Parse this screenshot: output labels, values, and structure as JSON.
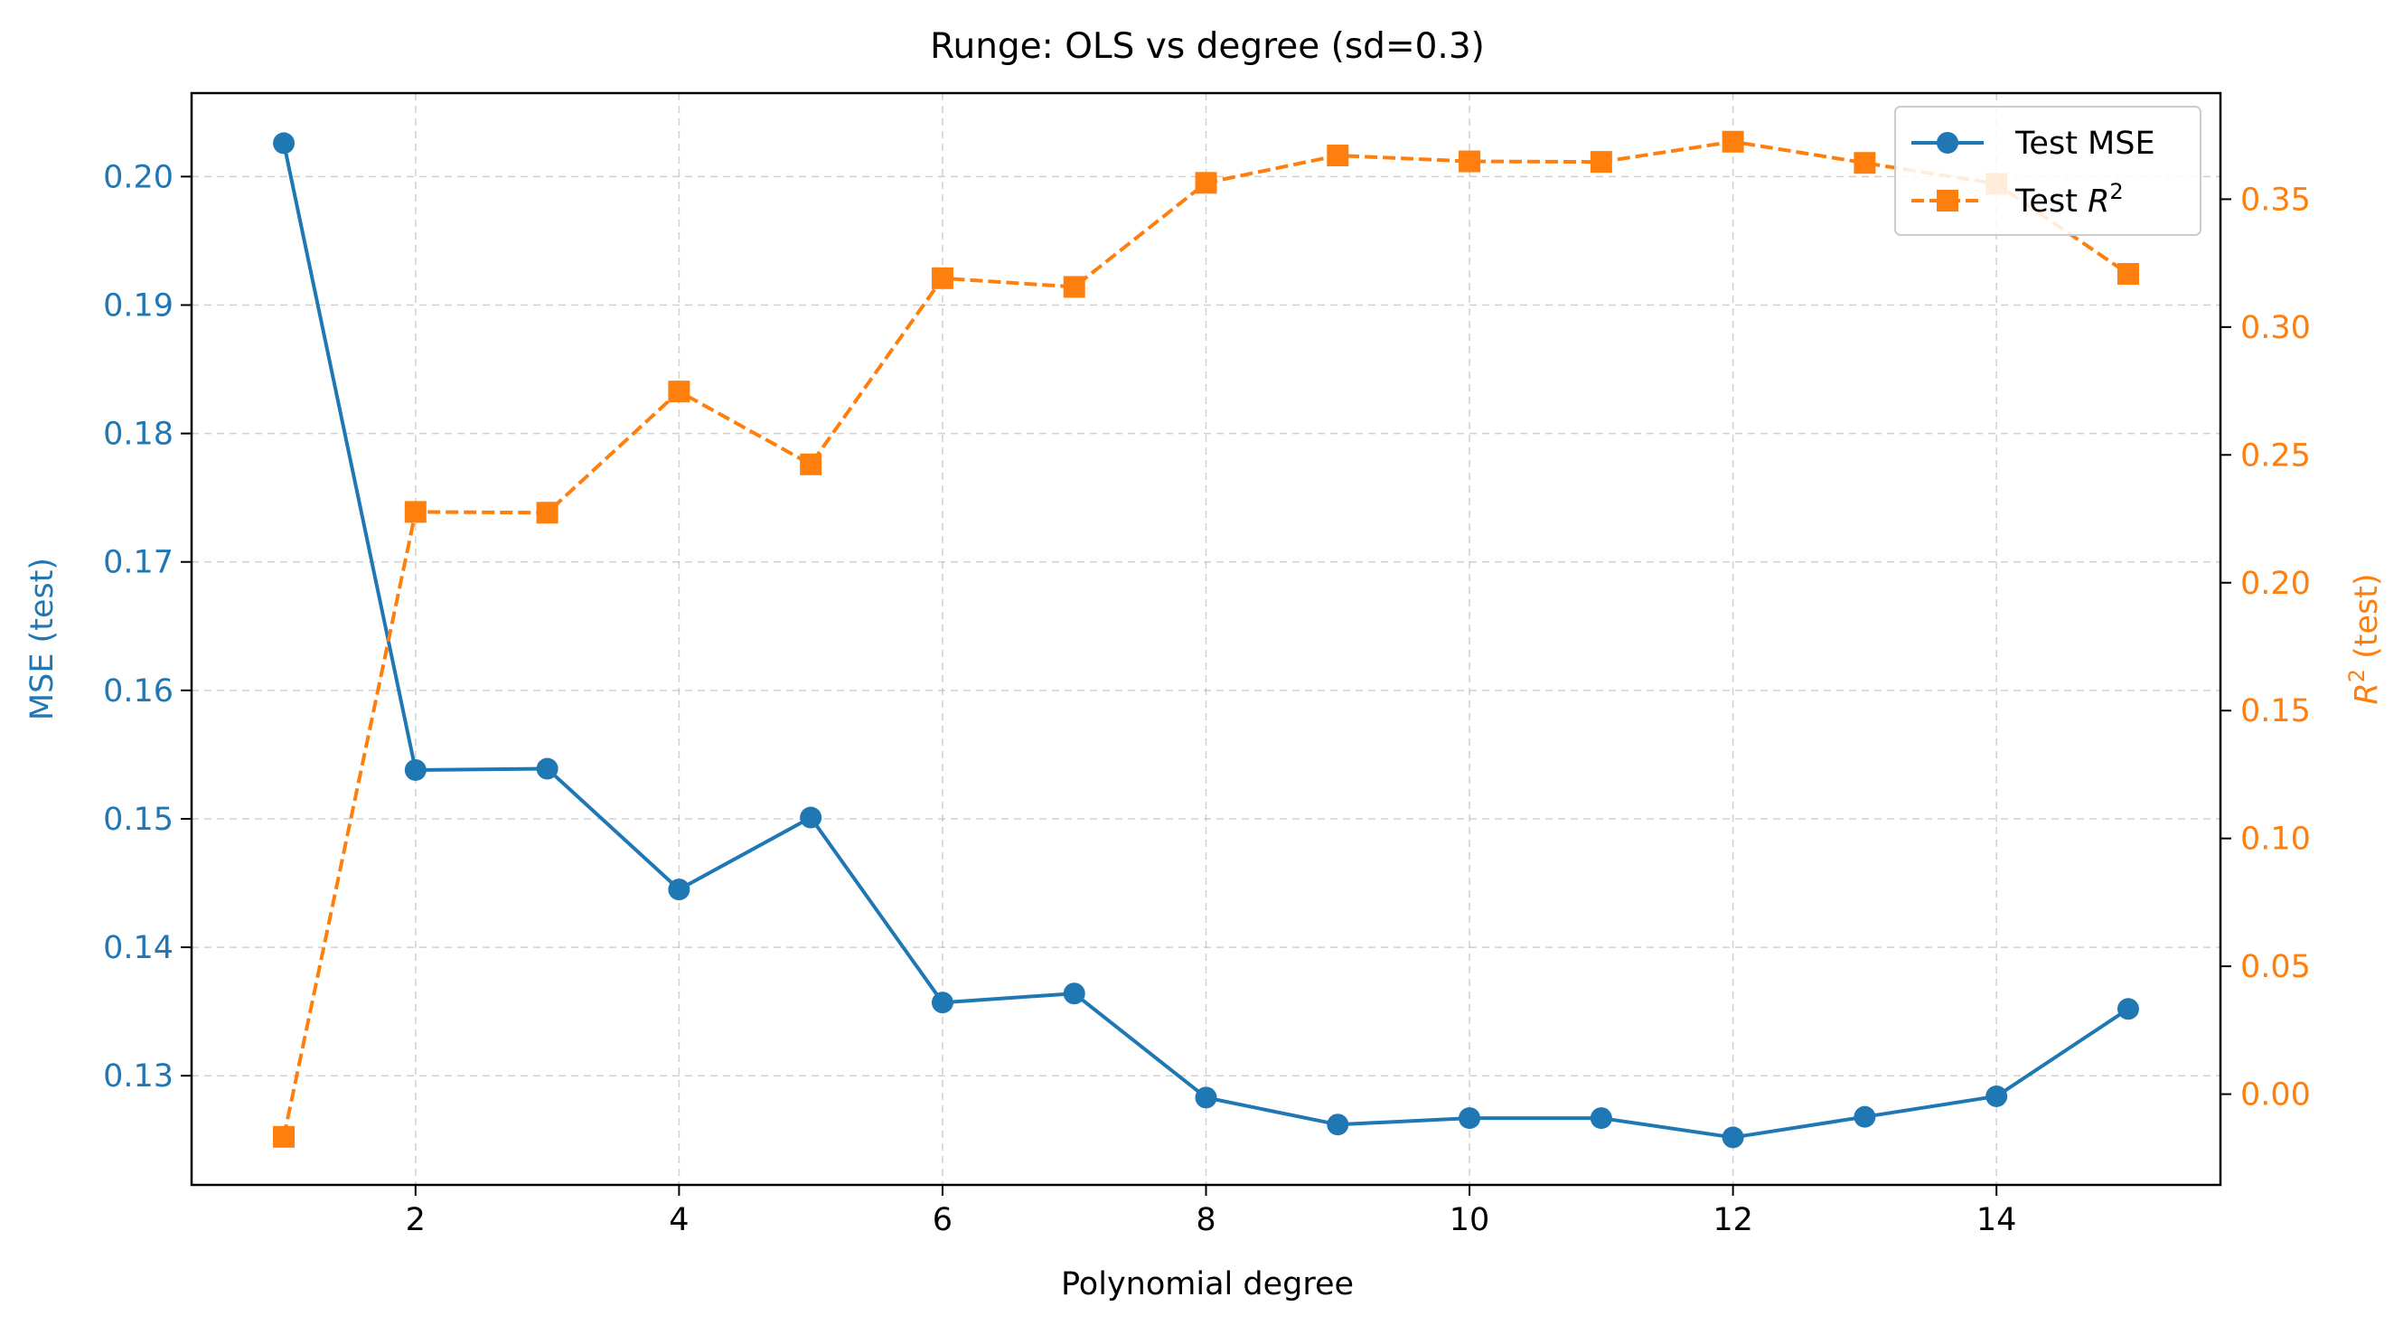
{
  "chart_data": {
    "type": "line",
    "title": "Runge: OLS vs degree (sd=0.3)",
    "xlabel": "Polynomial degree",
    "ylabel_left": "MSE (test)",
    "ylabel_right_base": "R",
    "ylabel_right_sup": "2",
    "ylabel_right_rest": " (test)",
    "x": [
      1,
      2,
      3,
      4,
      5,
      6,
      7,
      8,
      9,
      10,
      11,
      12,
      13,
      14,
      15
    ],
    "xlim": [
      0.3,
      15.7
    ],
    "xticks": [
      2,
      4,
      6,
      8,
      10,
      12,
      14
    ],
    "grid": true,
    "legend_position": "top-right",
    "series": [
      {
        "name": "Test MSE",
        "axis": "left",
        "color": "#1f77b4",
        "marker": "circle",
        "linestyle": "solid",
        "values": [
          0.2026,
          0.1538,
          0.1539,
          0.1445,
          0.1501,
          0.1357,
          0.1364,
          0.1283,
          0.1262,
          0.1267,
          0.1267,
          0.1252,
          0.1268,
          0.1284,
          0.1352
        ]
      },
      {
        "name": "Test ",
        "name_math": "R",
        "name_sup": "2",
        "axis": "right",
        "color": "#ff7f0e",
        "marker": "square",
        "linestyle": "dashed",
        "values": [
          -0.0167,
          0.2277,
          0.2274,
          0.2748,
          0.2463,
          0.3191,
          0.3157,
          0.3564,
          0.3671,
          0.3648,
          0.3646,
          0.3725,
          0.3642,
          0.356,
          0.3208
        ]
      }
    ],
    "ylim_left": [
      0.1215,
      0.2065
    ],
    "yticks_left": [
      "0.13",
      "0.14",
      "0.15",
      "0.16",
      "0.17",
      "0.18",
      "0.19",
      "0.20"
    ],
    "ylim_right": [
      -0.0355,
      0.3915
    ],
    "yticks_right": [
      "0.00",
      "0.05",
      "0.10",
      "0.15",
      "0.20",
      "0.25",
      "0.30",
      "0.35"
    ]
  }
}
